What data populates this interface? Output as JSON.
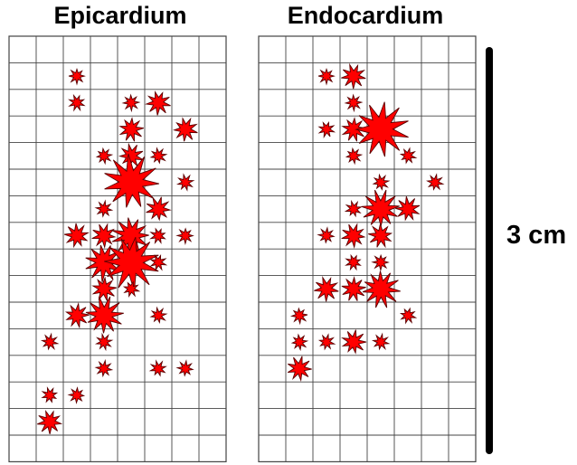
{
  "panels": [
    {
      "id": "epicardium",
      "title": "Epicardium",
      "grid": {
        "cols": 8,
        "rows": 16
      },
      "spots": [
        {
          "col": 2.5,
          "row": 1.5,
          "size": "small"
        },
        {
          "col": 2.5,
          "row": 2.5,
          "size": "small"
        },
        {
          "col": 4.5,
          "row": 2.5,
          "size": "small"
        },
        {
          "col": 5.5,
          "row": 2.5,
          "size": "medium"
        },
        {
          "col": 4.5,
          "row": 3.5,
          "size": "medium"
        },
        {
          "col": 6.5,
          "row": 3.5,
          "size": "medium"
        },
        {
          "col": 3.5,
          "row": 4.5,
          "size": "small"
        },
        {
          "col": 4.5,
          "row": 4.5,
          "size": "medium"
        },
        {
          "col": 5.5,
          "row": 4.5,
          "size": "small"
        },
        {
          "col": 4.5,
          "row": 5.5,
          "size": "xlarge"
        },
        {
          "col": 6.5,
          "row": 5.5,
          "size": "small"
        },
        {
          "col": 3.5,
          "row": 6.5,
          "size": "small"
        },
        {
          "col": 5.5,
          "row": 6.5,
          "size": "medium"
        },
        {
          "col": 2.5,
          "row": 7.5,
          "size": "medium"
        },
        {
          "col": 3.5,
          "row": 7.5,
          "size": "medium"
        },
        {
          "col": 4.5,
          "row": 7.5,
          "size": "large"
        },
        {
          "col": 5.5,
          "row": 7.5,
          "size": "small"
        },
        {
          "col": 6.5,
          "row": 7.5,
          "size": "small"
        },
        {
          "col": 3.5,
          "row": 8.5,
          "size": "large"
        },
        {
          "col": 4.5,
          "row": 8.5,
          "size": "xlarge"
        },
        {
          "col": 5.5,
          "row": 8.5,
          "size": "small"
        },
        {
          "col": 3.5,
          "row": 9.5,
          "size": "medium"
        },
        {
          "col": 4.5,
          "row": 9.5,
          "size": "small"
        },
        {
          "col": 2.5,
          "row": 10.5,
          "size": "medium"
        },
        {
          "col": 3.5,
          "row": 10.5,
          "size": "large"
        },
        {
          "col": 5.5,
          "row": 10.5,
          "size": "small"
        },
        {
          "col": 1.5,
          "row": 11.5,
          "size": "small"
        },
        {
          "col": 3.5,
          "row": 11.5,
          "size": "small"
        },
        {
          "col": 3.5,
          "row": 12.5,
          "size": "small"
        },
        {
          "col": 5.5,
          "row": 12.5,
          "size": "small"
        },
        {
          "col": 6.5,
          "row": 12.5,
          "size": "small"
        },
        {
          "col": 1.5,
          "row": 13.5,
          "size": "small"
        },
        {
          "col": 2.5,
          "row": 13.5,
          "size": "small"
        },
        {
          "col": 1.5,
          "row": 14.5,
          "size": "medium"
        }
      ]
    },
    {
      "id": "endocardium",
      "title": "Endocardium",
      "grid": {
        "cols": 8,
        "rows": 16
      },
      "spots": [
        {
          "col": 2.5,
          "row": 1.5,
          "size": "small"
        },
        {
          "col": 3.5,
          "row": 1.5,
          "size": "medium"
        },
        {
          "col": 3.5,
          "row": 2.5,
          "size": "small"
        },
        {
          "col": 2.5,
          "row": 3.5,
          "size": "small"
        },
        {
          "col": 3.5,
          "row": 3.5,
          "size": "medium"
        },
        {
          "col": 4.5,
          "row": 3.5,
          "size": "xlarge"
        },
        {
          "col": 3.5,
          "row": 4.5,
          "size": "small"
        },
        {
          "col": 5.5,
          "row": 4.5,
          "size": "small"
        },
        {
          "col": 4.5,
          "row": 5.5,
          "size": "small"
        },
        {
          "col": 6.5,
          "row": 5.5,
          "size": "small"
        },
        {
          "col": 4.5,
          "row": 6.5,
          "size": "large"
        },
        {
          "col": 5.5,
          "row": 6.5,
          "size": "medium"
        },
        {
          "col": 3.5,
          "row": 6.5,
          "size": "small"
        },
        {
          "col": 2.5,
          "row": 7.5,
          "size": "small"
        },
        {
          "col": 3.5,
          "row": 7.5,
          "size": "medium"
        },
        {
          "col": 4.5,
          "row": 7.5,
          "size": "medium"
        },
        {
          "col": 3.5,
          "row": 8.5,
          "size": "small"
        },
        {
          "col": 4.5,
          "row": 8.5,
          "size": "small"
        },
        {
          "col": 2.5,
          "row": 9.5,
          "size": "medium"
        },
        {
          "col": 3.5,
          "row": 9.5,
          "size": "medium"
        },
        {
          "col": 4.5,
          "row": 9.5,
          "size": "large"
        },
        {
          "col": 1.5,
          "row": 10.5,
          "size": "small"
        },
        {
          "col": 5.5,
          "row": 10.5,
          "size": "small"
        },
        {
          "col": 1.5,
          "row": 11.5,
          "size": "small"
        },
        {
          "col": 2.5,
          "row": 11.5,
          "size": "small"
        },
        {
          "col": 3.5,
          "row": 11.5,
          "size": "medium"
        },
        {
          "col": 4.5,
          "row": 11.5,
          "size": "small"
        },
        {
          "col": 1.5,
          "row": 12.5,
          "size": "medium"
        }
      ]
    }
  ],
  "scale": {
    "label": "3 cm"
  },
  "colors": {
    "spot_fill": "#ff0000",
    "spot_stroke": "#5a0000",
    "grid_line": "#444444",
    "scale_bar": "#000000"
  }
}
